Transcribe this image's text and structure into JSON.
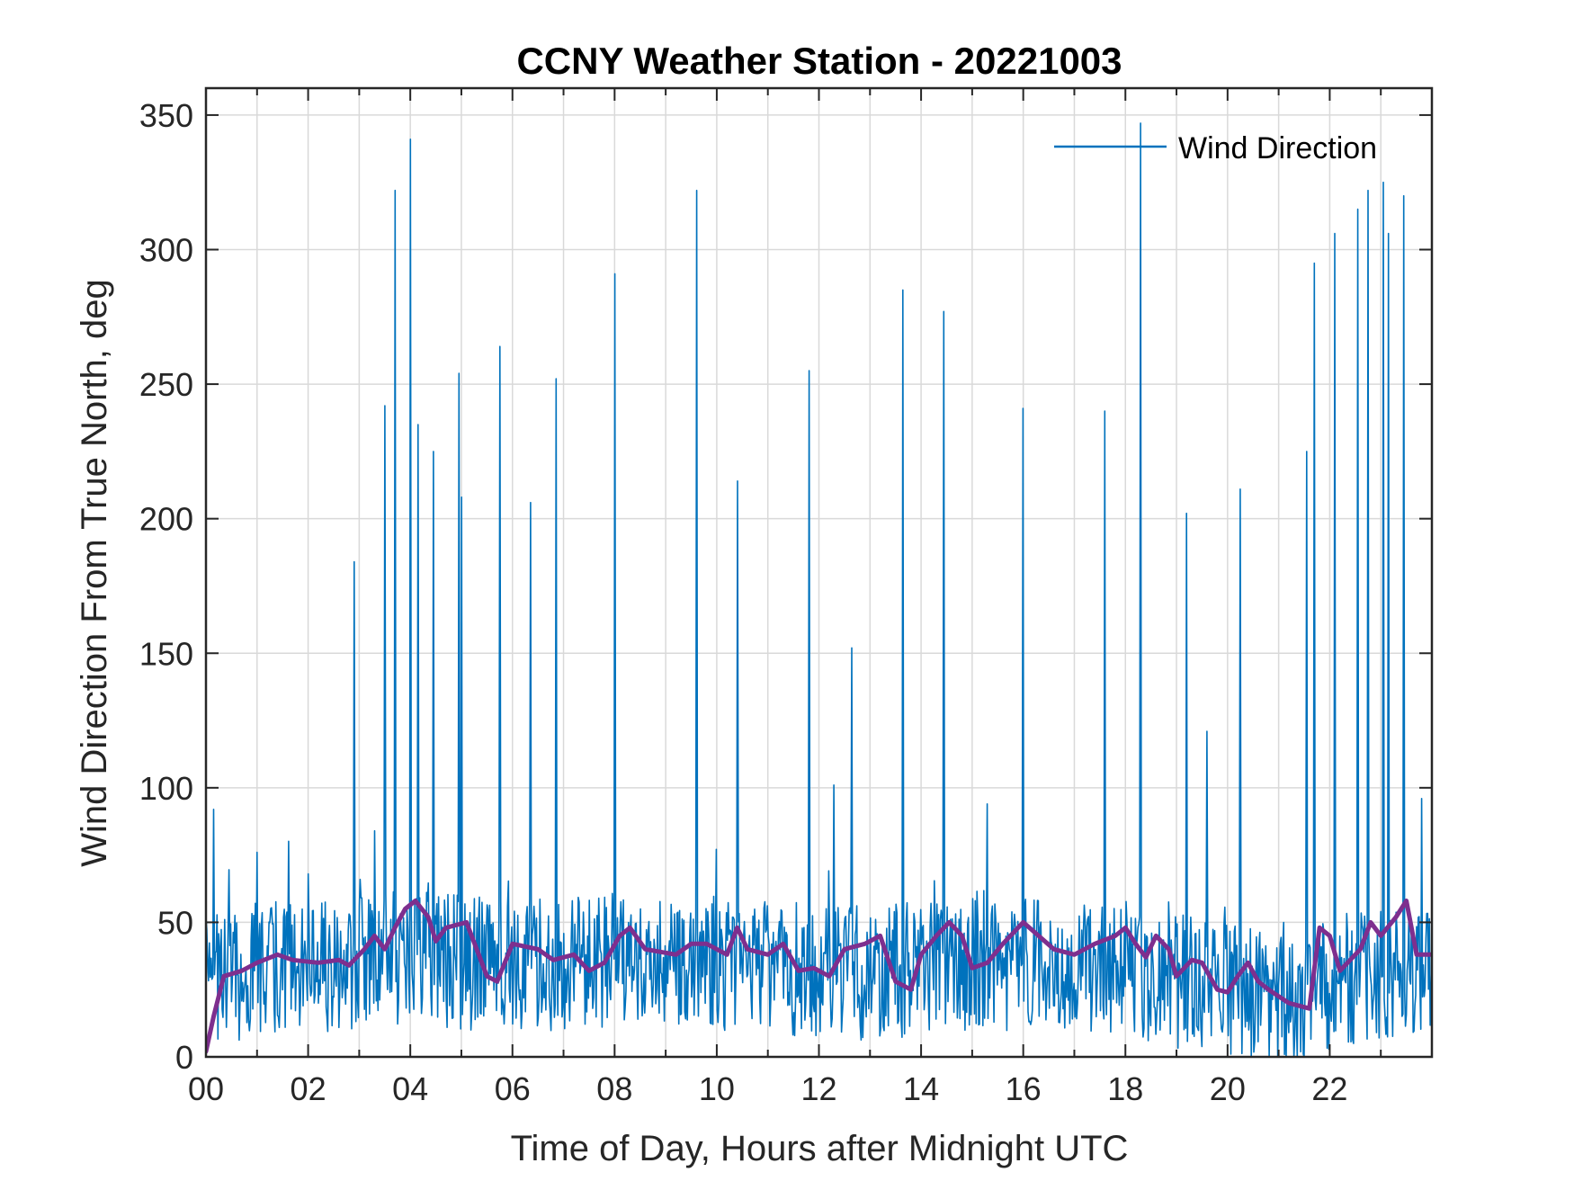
{
  "colors": {
    "raw_series": "#0072BD",
    "mean_series": "#7E2F8E",
    "grid": "#d9d9d9",
    "axis": "#262626",
    "background": "#ffffff"
  },
  "chart_data": {
    "type": "line",
    "title": "CCNY Weather Station - 20221003",
    "xlabel": "Time of Day, Hours after Midnight UTC",
    "ylabel": "Wind Direction From True North, deg",
    "xlim": [
      0,
      24
    ],
    "ylim": [
      0,
      360
    ],
    "x_ticks": [
      0,
      2,
      4,
      6,
      8,
      10,
      12,
      14,
      16,
      18,
      20,
      22
    ],
    "x_tick_labels": [
      "00",
      "02",
      "04",
      "06",
      "08",
      "10",
      "12",
      "14",
      "16",
      "18",
      "20",
      "22"
    ],
    "y_ticks": [
      0,
      50,
      100,
      150,
      200,
      250,
      300,
      350
    ],
    "y_tick_labels": [
      "0",
      "50",
      "100",
      "150",
      "200",
      "250",
      "300",
      "350"
    ],
    "x_minor_step": 1,
    "y_minor_step": 25,
    "grid": true,
    "legend": {
      "position": "top-right",
      "entries": [
        "Wind Direction"
      ]
    },
    "series": [
      {
        "name": "Wind Direction",
        "kind": "raw",
        "color": "#0072BD",
        "baseline": [
          [
            0,
            30
          ],
          [
            0.5,
            30
          ],
          [
            1,
            33
          ],
          [
            2,
            33
          ],
          [
            3,
            35
          ],
          [
            4,
            37
          ],
          [
            5,
            35
          ],
          [
            6,
            34
          ],
          [
            7,
            34
          ],
          [
            8,
            36
          ],
          [
            9,
            36
          ],
          [
            10,
            35
          ],
          [
            11,
            33
          ],
          [
            12,
            32
          ],
          [
            13,
            31
          ],
          [
            14,
            33
          ],
          [
            15,
            34
          ],
          [
            16,
            34
          ],
          [
            17,
            34
          ],
          [
            18,
            33
          ],
          [
            19,
            28
          ],
          [
            20,
            26
          ],
          [
            21,
            20
          ],
          [
            21.5,
            20
          ],
          [
            22,
            28
          ],
          [
            23,
            32
          ],
          [
            24,
            32
          ]
        ],
        "spikes": [
          [
            0.15,
            92
          ],
          [
            1.0,
            76
          ],
          [
            2.0,
            68
          ],
          [
            2.9,
            184
          ],
          [
            3.3,
            84
          ],
          [
            3.5,
            242
          ],
          [
            3.7,
            322
          ],
          [
            4.0,
            341
          ],
          [
            4.15,
            235
          ],
          [
            4.45,
            225
          ],
          [
            4.95,
            254
          ],
          [
            5.0,
            208
          ],
          [
            5.75,
            264
          ],
          [
            6.35,
            206
          ],
          [
            6.85,
            252
          ],
          [
            8.0,
            291
          ],
          [
            9.6,
            322
          ],
          [
            10.4,
            214
          ],
          [
            11.8,
            255
          ],
          [
            12.3,
            101
          ],
          [
            12.65,
            152
          ],
          [
            13.65,
            285
          ],
          [
            14.45,
            277
          ],
          [
            15.3,
            94
          ],
          [
            16.0,
            241
          ],
          [
            17.6,
            240
          ],
          [
            18.3,
            347
          ],
          [
            19.2,
            202
          ],
          [
            19.6,
            121
          ],
          [
            20.25,
            211
          ],
          [
            21.55,
            225
          ],
          [
            21.7,
            295
          ],
          [
            22.1,
            306
          ],
          [
            22.55,
            315
          ],
          [
            22.75,
            322
          ],
          [
            23.05,
            325
          ],
          [
            23.15,
            306
          ],
          [
            23.45,
            320
          ],
          [
            23.8,
            96
          ]
        ]
      },
      {
        "name": "",
        "kind": "running-mean",
        "color": "#7E2F8E",
        "points": [
          [
            0,
            2
          ],
          [
            0.15,
            15
          ],
          [
            0.35,
            30
          ],
          [
            0.7,
            32
          ],
          [
            1.0,
            35
          ],
          [
            1.4,
            38
          ],
          [
            1.7,
            36
          ],
          [
            2.2,
            35
          ],
          [
            2.6,
            36
          ],
          [
            2.8,
            34
          ],
          [
            3.1,
            40
          ],
          [
            3.3,
            45
          ],
          [
            3.5,
            40
          ],
          [
            3.7,
            48
          ],
          [
            3.9,
            55
          ],
          [
            4.1,
            58
          ],
          [
            4.35,
            52
          ],
          [
            4.5,
            43
          ],
          [
            4.7,
            48
          ],
          [
            5.1,
            50
          ],
          [
            5.3,
            40
          ],
          [
            5.5,
            30
          ],
          [
            5.7,
            28
          ],
          [
            6.0,
            42
          ],
          [
            6.5,
            40
          ],
          [
            6.8,
            36
          ],
          [
            7.2,
            38
          ],
          [
            7.5,
            32
          ],
          [
            7.8,
            35
          ],
          [
            8.1,
            45
          ],
          [
            8.3,
            48
          ],
          [
            8.6,
            40
          ],
          [
            9.2,
            38
          ],
          [
            9.5,
            42
          ],
          [
            9.8,
            42
          ],
          [
            10.2,
            38
          ],
          [
            10.4,
            48
          ],
          [
            10.6,
            40
          ],
          [
            11.0,
            38
          ],
          [
            11.3,
            42
          ],
          [
            11.6,
            32
          ],
          [
            11.9,
            33
          ],
          [
            12.2,
            30
          ],
          [
            12.5,
            40
          ],
          [
            12.9,
            42
          ],
          [
            13.2,
            45
          ],
          [
            13.5,
            28
          ],
          [
            13.8,
            25
          ],
          [
            14.0,
            38
          ],
          [
            14.3,
            45
          ],
          [
            14.55,
            50
          ],
          [
            14.8,
            45
          ],
          [
            15.0,
            33
          ],
          [
            15.3,
            35
          ],
          [
            15.6,
            42
          ],
          [
            16.0,
            50
          ],
          [
            16.3,
            45
          ],
          [
            16.6,
            40
          ],
          [
            17.0,
            38
          ],
          [
            17.4,
            42
          ],
          [
            17.8,
            45
          ],
          [
            18.0,
            48
          ],
          [
            18.2,
            42
          ],
          [
            18.4,
            37
          ],
          [
            18.6,
            45
          ],
          [
            18.85,
            40
          ],
          [
            19.0,
            30
          ],
          [
            19.3,
            36
          ],
          [
            19.5,
            35
          ],
          [
            19.8,
            25
          ],
          [
            20.0,
            24
          ],
          [
            20.2,
            30
          ],
          [
            20.4,
            35
          ],
          [
            20.6,
            28
          ],
          [
            20.8,
            25
          ],
          [
            21.2,
            20
          ],
          [
            21.6,
            18
          ],
          [
            21.8,
            48
          ],
          [
            22.0,
            45
          ],
          [
            22.2,
            32
          ],
          [
            22.6,
            40
          ],
          [
            22.8,
            50
          ],
          [
            23.0,
            45
          ],
          [
            23.3,
            52
          ],
          [
            23.5,
            58
          ],
          [
            23.7,
            38
          ],
          [
            24.0,
            38
          ]
        ]
      }
    ]
  }
}
